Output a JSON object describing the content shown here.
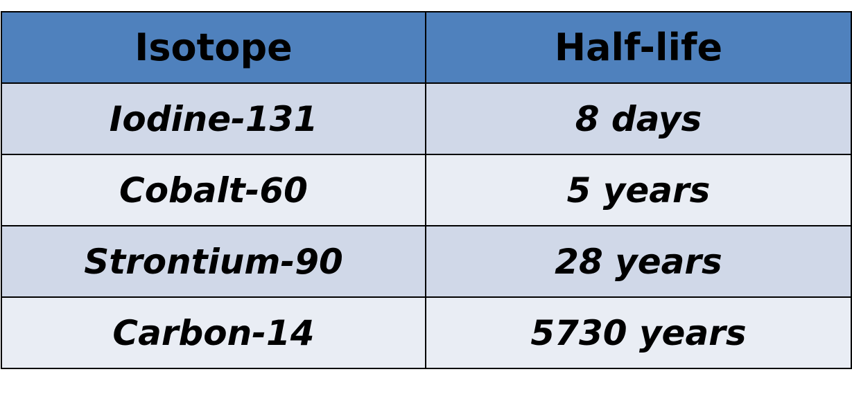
{
  "table": {
    "headers": [
      "Isotope",
      "Half-life"
    ],
    "rows": [
      [
        "Iodine-131",
        "8 days"
      ],
      [
        "Cobalt-60",
        "5 years"
      ],
      [
        "Strontium-90",
        "28 years"
      ],
      [
        "Carbon-14",
        "5730 years"
      ]
    ]
  },
  "colors": {
    "header_bg": "#4f81bd",
    "row_odd_bg": "#d0d8e8",
    "row_even_bg": "#e9edf4",
    "border": "#000000",
    "text": "#000000"
  }
}
